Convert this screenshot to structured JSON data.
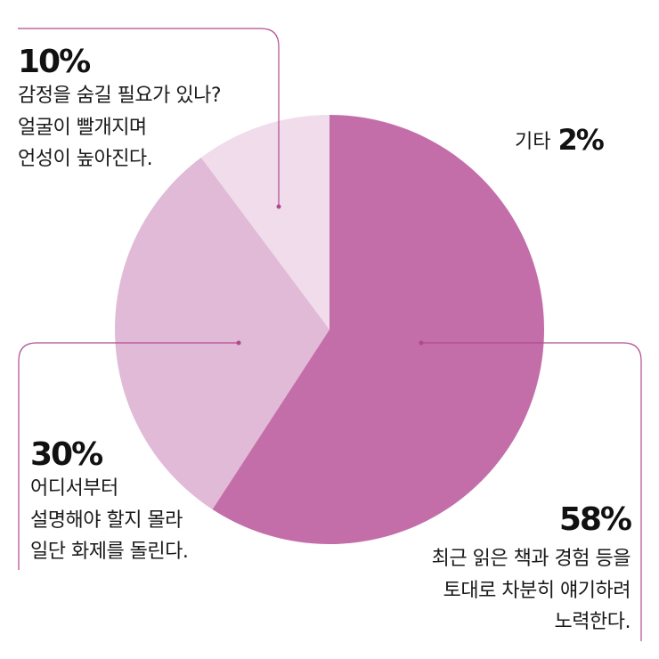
{
  "chart_data": {
    "type": "pie",
    "slices": [
      {
        "value": 58,
        "color": "#c46ea9"
      },
      {
        "value": 30,
        "color": "#e0bad6"
      },
      {
        "value": 10,
        "color": "#f0dcea"
      }
    ],
    "annotations": [
      {
        "pct": "10%",
        "lines": [
          "감정을 숨길 필요가 있나?",
          "얼굴이 빨개지며",
          "언성이 높아진다."
        ]
      },
      {
        "pct": "30%",
        "lines": [
          "어디서부터",
          "설명해야 할지 몰라",
          "일단 화제를 돌린다."
        ]
      },
      {
        "pct": "58%",
        "lines": [
          "최근 읽은 책과 경험 등을",
          "토대로 차분히 얘기하려",
          "노력한다."
        ]
      }
    ],
    "other": {
      "label": "기타",
      "value": "2%"
    }
  }
}
